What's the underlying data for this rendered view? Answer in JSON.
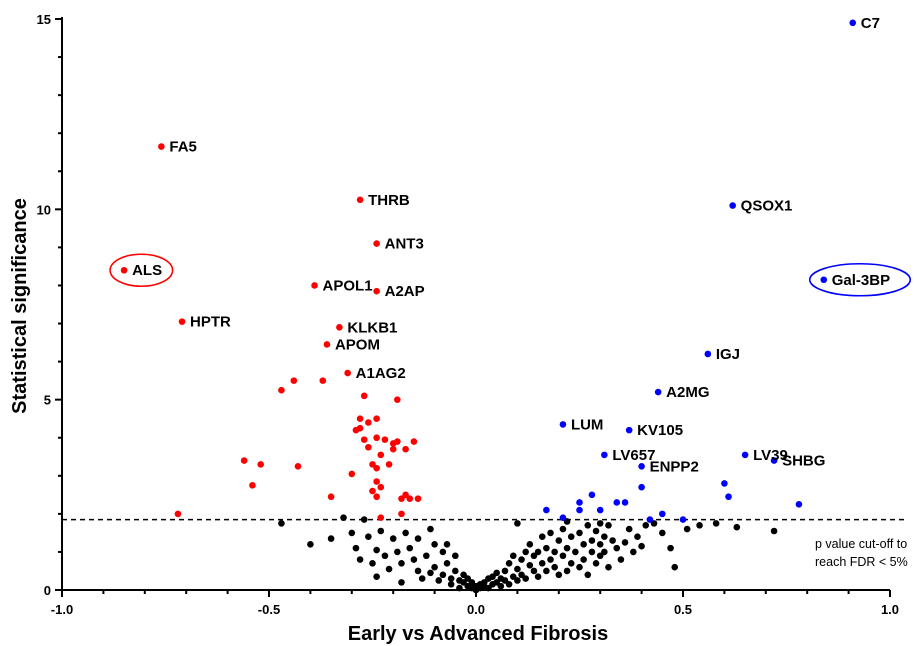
{
  "chart_data": {
    "type": "scatter",
    "title": "",
    "xlabel": "Early vs Advanced Fibrosis",
    "ylabel": "Statistical significance",
    "xlim": [
      -1.0,
      1.0
    ],
    "ylim": [
      0,
      15
    ],
    "x_ticks": [
      "-1.0",
      "-0.5",
      "0.0",
      "0.5",
      "1.0"
    ],
    "y_ticks": [
      "0",
      "5",
      "10",
      "15"
    ],
    "threshold": {
      "y": 1.85,
      "note_line1": "p value cut-off to",
      "note_line2": "reach FDR < 5%"
    },
    "colors": {
      "down": "#ff0000",
      "up": "#0000ff",
      "ns": "#000000"
    },
    "labeled_points": [
      {
        "label": "C7",
        "x": 0.91,
        "y": 14.9,
        "group": "up"
      },
      {
        "label": "FA5",
        "x": -0.76,
        "y": 11.65,
        "group": "down"
      },
      {
        "label": "THRB",
        "x": -0.28,
        "y": 10.25,
        "group": "down"
      },
      {
        "label": "QSOX1",
        "x": 0.62,
        "y": 10.1,
        "group": "up"
      },
      {
        "label": "ANT3",
        "x": -0.24,
        "y": 9.1,
        "group": "down"
      },
      {
        "label": "ALS",
        "x": -0.85,
        "y": 8.4,
        "group": "down",
        "circled": true
      },
      {
        "label": "Gal-3BP",
        "x": 0.84,
        "y": 8.15,
        "group": "up",
        "circled": true
      },
      {
        "label": "APOL1",
        "x": -0.39,
        "y": 8.0,
        "group": "down"
      },
      {
        "label": "A2AP",
        "x": -0.24,
        "y": 7.85,
        "group": "down"
      },
      {
        "label": "HPTR",
        "x": -0.71,
        "y": 7.05,
        "group": "down"
      },
      {
        "label": "KLKB1",
        "x": -0.33,
        "y": 6.9,
        "group": "down"
      },
      {
        "label": "APOM",
        "x": -0.36,
        "y": 6.45,
        "group": "down"
      },
      {
        "label": "IGJ",
        "x": 0.56,
        "y": 6.2,
        "group": "up"
      },
      {
        "label": "A1AG2",
        "x": -0.31,
        "y": 5.7,
        "group": "down"
      },
      {
        "label": "A2MG",
        "x": 0.44,
        "y": 5.2,
        "group": "up"
      },
      {
        "label": "LUM",
        "x": 0.21,
        "y": 4.35,
        "group": "up"
      },
      {
        "label": "KV105",
        "x": 0.37,
        "y": 4.2,
        "group": "up"
      },
      {
        "label": "LV657",
        "x": 0.31,
        "y": 3.55,
        "group": "up"
      },
      {
        "label": "LV39",
        "x": 0.65,
        "y": 3.55,
        "group": "up"
      },
      {
        "label": "SHBG",
        "x": 0.72,
        "y": 3.4,
        "group": "up"
      },
      {
        "label": "ENPP2",
        "x": 0.4,
        "y": 3.25,
        "group": "up"
      }
    ],
    "points_down": [
      [
        -0.72,
        2.0
      ],
      [
        -0.56,
        3.4
      ],
      [
        -0.54,
        2.75
      ],
      [
        -0.52,
        3.3
      ],
      [
        -0.47,
        5.25
      ],
      [
        -0.44,
        5.5
      ],
      [
        -0.43,
        3.25
      ],
      [
        -0.37,
        5.5
      ],
      [
        -0.35,
        2.45
      ],
      [
        -0.3,
        3.05
      ],
      [
        -0.29,
        4.2
      ],
      [
        -0.28,
        4.5
      ],
      [
        -0.28,
        4.25
      ],
      [
        -0.27,
        3.95
      ],
      [
        -0.27,
        5.1
      ],
      [
        -0.26,
        4.4
      ],
      [
        -0.26,
        3.75
      ],
      [
        -0.25,
        3.3
      ],
      [
        -0.25,
        2.6
      ],
      [
        -0.24,
        4.5
      ],
      [
        -0.24,
        4.0
      ],
      [
        -0.24,
        3.2
      ],
      [
        -0.24,
        2.85
      ],
      [
        -0.24,
        2.45
      ],
      [
        -0.23,
        3.55
      ],
      [
        -0.23,
        2.7
      ],
      [
        -0.22,
        3.95
      ],
      [
        -0.21,
        3.3
      ],
      [
        -0.2,
        3.85
      ],
      [
        -0.2,
        3.7
      ],
      [
        -0.19,
        5.0
      ],
      [
        -0.19,
        3.9
      ],
      [
        -0.18,
        2.4
      ],
      [
        -0.18,
        2.0
      ],
      [
        -0.17,
        3.7
      ],
      [
        -0.17,
        2.5
      ],
      [
        -0.16,
        2.4
      ],
      [
        -0.15,
        3.9
      ],
      [
        -0.14,
        2.4
      ],
      [
        -0.23,
        1.9
      ]
    ],
    "points_up": [
      [
        0.17,
        2.1
      ],
      [
        0.21,
        1.9
      ],
      [
        0.25,
        2.1
      ],
      [
        0.25,
        2.3
      ],
      [
        0.28,
        2.5
      ],
      [
        0.3,
        2.1
      ],
      [
        0.34,
        2.3
      ],
      [
        0.36,
        2.3
      ],
      [
        0.4,
        2.7
      ],
      [
        0.42,
        1.85
      ],
      [
        0.45,
        2.0
      ],
      [
        0.5,
        1.85
      ],
      [
        0.6,
        2.8
      ],
      [
        0.61,
        2.45
      ],
      [
        0.78,
        2.25
      ]
    ],
    "points_ns": [
      [
        -0.47,
        1.75
      ],
      [
        -0.4,
        1.2
      ],
      [
        -0.35,
        1.35
      ],
      [
        -0.32,
        1.9
      ],
      [
        -0.3,
        1.5
      ],
      [
        -0.29,
        1.1
      ],
      [
        -0.28,
        0.8
      ],
      [
        -0.27,
        1.85
      ],
      [
        -0.26,
        1.4
      ],
      [
        -0.25,
        0.7
      ],
      [
        -0.24,
        1.05
      ],
      [
        -0.24,
        0.35
      ],
      [
        -0.23,
        1.55
      ],
      [
        -0.22,
        0.9
      ],
      [
        -0.21,
        0.55
      ],
      [
        -0.2,
        1.35
      ],
      [
        -0.19,
        1.0
      ],
      [
        -0.18,
        0.7
      ],
      [
        -0.18,
        0.2
      ],
      [
        -0.17,
        1.5
      ],
      [
        -0.16,
        1.1
      ],
      [
        -0.15,
        0.8
      ],
      [
        -0.14,
        0.5
      ],
      [
        -0.14,
        1.35
      ],
      [
        -0.13,
        0.3
      ],
      [
        -0.12,
        0.9
      ],
      [
        -0.11,
        1.6
      ],
      [
        -0.11,
        0.45
      ],
      [
        -0.1,
        1.2
      ],
      [
        -0.1,
        0.6
      ],
      [
        -0.09,
        0.25
      ],
      [
        -0.08,
        1.0
      ],
      [
        -0.08,
        0.4
      ],
      [
        -0.07,
        1.2
      ],
      [
        -0.07,
        0.7
      ],
      [
        -0.06,
        0.3
      ],
      [
        -0.06,
        0.15
      ],
      [
        -0.05,
        0.5
      ],
      [
        -0.05,
        0.9
      ],
      [
        -0.04,
        0.25
      ],
      [
        -0.04,
        0.05
      ],
      [
        -0.03,
        0.4
      ],
      [
        -0.03,
        0.2
      ],
      [
        -0.02,
        0.1
      ],
      [
        -0.02,
        0.3
      ],
      [
        -0.01,
        0.05
      ],
      [
        -0.01,
        0.2
      ],
      [
        0.0,
        0.1
      ],
      [
        0.0,
        0.0
      ],
      [
        0.01,
        0.15
      ],
      [
        0.01,
        0.05
      ],
      [
        0.02,
        0.2
      ],
      [
        0.02,
        0.1
      ],
      [
        0.03,
        0.3
      ],
      [
        0.03,
        0.05
      ],
      [
        0.04,
        0.15
      ],
      [
        0.04,
        0.35
      ],
      [
        0.05,
        0.2
      ],
      [
        0.05,
        0.45
      ],
      [
        0.06,
        0.1
      ],
      [
        0.06,
        0.3
      ],
      [
        0.07,
        0.25
      ],
      [
        0.07,
        0.5
      ],
      [
        0.08,
        0.15
      ],
      [
        0.08,
        0.7
      ],
      [
        0.09,
        0.35
      ],
      [
        0.09,
        0.9
      ],
      [
        0.1,
        0.25
      ],
      [
        0.1,
        0.55
      ],
      [
        0.11,
        0.8
      ],
      [
        0.11,
        0.4
      ],
      [
        0.12,
        1.0
      ],
      [
        0.12,
        0.3
      ],
      [
        0.13,
        0.65
      ],
      [
        0.13,
        1.2
      ],
      [
        0.14,
        0.5
      ],
      [
        0.14,
        0.9
      ],
      [
        0.15,
        1.0
      ],
      [
        0.15,
        0.35
      ],
      [
        0.16,
        1.4
      ],
      [
        0.16,
        0.7
      ],
      [
        0.17,
        1.1
      ],
      [
        0.17,
        0.5
      ],
      [
        0.18,
        1.5
      ],
      [
        0.18,
        0.8
      ],
      [
        0.19,
        1.0
      ],
      [
        0.19,
        0.6
      ],
      [
        0.2,
        1.3
      ],
      [
        0.2,
        0.4
      ],
      [
        0.21,
        1.6
      ],
      [
        0.21,
        0.9
      ],
      [
        0.22,
        1.1
      ],
      [
        0.22,
        0.5
      ],
      [
        0.23,
        1.4
      ],
      [
        0.23,
        0.7
      ],
      [
        0.24,
        1.0
      ],
      [
        0.25,
        1.5
      ],
      [
        0.25,
        0.6
      ],
      [
        0.26,
        1.2
      ],
      [
        0.26,
        0.8
      ],
      [
        0.27,
        1.7
      ],
      [
        0.27,
        0.4
      ],
      [
        0.28,
        1.0
      ],
      [
        0.28,
        1.3
      ],
      [
        0.29,
        0.7
      ],
      [
        0.29,
        1.55
      ],
      [
        0.3,
        1.2
      ],
      [
        0.3,
        0.9
      ],
      [
        0.31,
        1.4
      ],
      [
        0.31,
        1.0
      ],
      [
        0.32,
        1.7
      ],
      [
        0.32,
        0.6
      ],
      [
        0.33,
        1.3
      ],
      [
        0.34,
        1.1
      ],
      [
        0.35,
        0.8
      ],
      [
        0.36,
        1.25
      ],
      [
        0.37,
        1.6
      ],
      [
        0.38,
        1.0
      ],
      [
        0.39,
        1.4
      ],
      [
        0.4,
        1.15
      ],
      [
        0.41,
        1.7
      ],
      [
        0.43,
        1.75
      ],
      [
        0.45,
        1.5
      ],
      [
        0.47,
        1.1
      ],
      [
        0.48,
        0.6
      ],
      [
        0.51,
        1.6
      ],
      [
        0.54,
        1.7
      ],
      [
        0.58,
        1.75
      ],
      [
        0.63,
        1.65
      ],
      [
        0.72,
        1.55
      ],
      [
        0.1,
        1.75
      ],
      [
        0.22,
        1.8
      ],
      [
        0.3,
        1.75
      ]
    ]
  }
}
